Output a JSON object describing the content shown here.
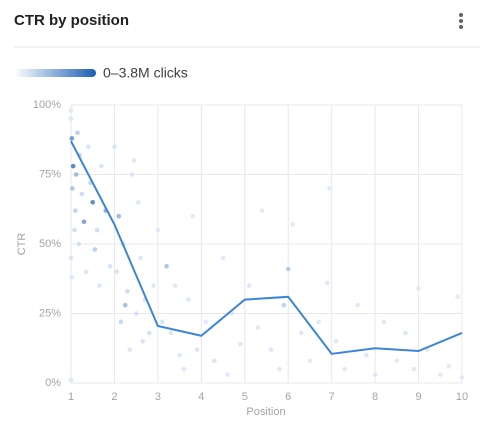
{
  "chart_data": {
    "type": "scatter",
    "title": "CTR by position",
    "color_legend": "0–3.8M clicks",
    "clim": [
      0,
      3800000
    ],
    "color_scale": [
      "#dce9f8",
      "#1a5fb4"
    ],
    "xlabel": "Position",
    "ylabel": "CTR",
    "xlim": [
      1,
      10
    ],
    "ylim": [
      0,
      100
    ],
    "xticks": [
      1,
      2,
      3,
      4,
      5,
      6,
      7,
      8,
      9,
      10
    ],
    "yticks": [
      {
        "value": 0,
        "label": "0%"
      },
      {
        "value": 25,
        "label": "25%"
      },
      {
        "value": 50,
        "label": "50%"
      },
      {
        "value": 75,
        "label": "75%"
      },
      {
        "value": 100,
        "label": "100%"
      }
    ],
    "grid": true,
    "series": [
      {
        "type": "scatter",
        "x": [
          1.0,
          1.02,
          1.05,
          1.03,
          1.1,
          1.08,
          1.0,
          1.15,
          1.2,
          1.12,
          1.25,
          1.3,
          1.18,
          1.4,
          1.45,
          1.5,
          1.6,
          1.35,
          1.7,
          1.55,
          1.8,
          1.9,
          1.65,
          1.0,
          1.02,
          1.0,
          2.0,
          2.1,
          2.2,
          2.05,
          2.3,
          2.4,
          2.5,
          2.6,
          2.15,
          2.7,
          2.8,
          2.9,
          2.35,
          2.55,
          2.45,
          2.25,
          2.65,
          3.0,
          3.1,
          3.2,
          3.3,
          3.5,
          3.7,
          3.9,
          3.6,
          3.8,
          3.4,
          4.1,
          4.3,
          4.5,
          4.7,
          4.9,
          4.6,
          5.1,
          5.3,
          5.4,
          5.6,
          5.8,
          5.9,
          6.0,
          6.1,
          6.3,
          6.5,
          6.7,
          6.9,
          6.95,
          7.1,
          7.3,
          7.6,
          7.8,
          8.0,
          8.2,
          8.5,
          8.7,
          8.9,
          9.0,
          9.2,
          9.5,
          9.7,
          9.9,
          10.0
        ],
        "values": [
          95,
          88,
          78,
          70,
          62,
          55,
          45,
          90,
          82,
          75,
          68,
          58,
          50,
          85,
          72,
          65,
          55,
          40,
          78,
          48,
          62,
          42,
          35,
          98,
          38,
          1,
          85,
          60,
          50,
          40,
          33,
          75,
          25,
          45,
          22,
          30,
          18,
          35,
          12,
          65,
          80,
          28,
          15,
          55,
          22,
          42,
          18,
          10,
          30,
          12,
          5,
          60,
          35,
          22,
          8,
          45,
          25,
          14,
          3,
          35,
          20,
          62,
          12,
          5,
          28,
          41,
          57,
          18,
          8,
          22,
          36,
          70,
          15,
          5,
          28,
          10,
          3,
          22,
          8,
          18,
          5,
          34,
          12,
          3,
          6,
          31,
          2
        ],
        "clicks": [
          100000,
          2500000,
          3200000,
          1200000,
          800000,
          400000,
          200000,
          900000,
          600000,
          1500000,
          500000,
          2200000,
          300000,
          200000,
          700000,
          3000000,
          400000,
          150000,
          250000,
          900000,
          1800000,
          300000,
          100000,
          100000,
          80000,
          100000,
          200000,
          1600000,
          500000,
          300000,
          400000,
          150000,
          250000,
          120000,
          600000,
          200000,
          300000,
          100000,
          150000,
          90000,
          70000,
          1400000,
          200000,
          80000,
          300000,
          1200000,
          150000,
          100000,
          120000,
          200000,
          80000,
          60000,
          90000,
          100000,
          150000,
          60000,
          90000,
          120000,
          80000,
          120000,
          90000,
          50000,
          100000,
          70000,
          800000,
          1000000,
          60000,
          100000,
          80000,
          90000,
          70000,
          50000,
          100000,
          80000,
          60000,
          90000,
          70000,
          80000,
          60000,
          90000,
          50000,
          50000,
          60000,
          80000,
          40000,
          50000,
          60000
        ]
      },
      {
        "type": "line",
        "color": "#3b86d6",
        "x": [
          1,
          2,
          3,
          4,
          5,
          6,
          7,
          8,
          9,
          10
        ],
        "values": [
          87,
          57,
          20.5,
          17,
          30,
          31,
          10.5,
          12.5,
          11.5,
          18
        ]
      }
    ]
  }
}
